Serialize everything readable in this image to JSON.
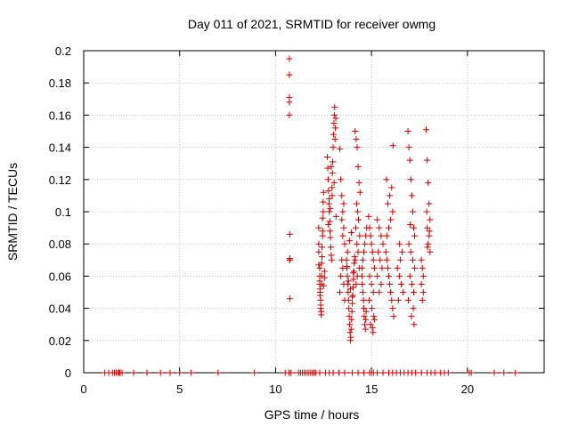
{
  "chart_data": {
    "type": "scatter",
    "title": "Day 011 of 2021, SRMTID for receiver owmg",
    "xlabel": "GPS time / hours",
    "ylabel": "SRMTID / TECUs",
    "xlim": [
      0,
      24
    ],
    "ylim": [
      0,
      0.2
    ],
    "x_ticks": [
      0,
      5,
      10,
      15,
      20
    ],
    "x_tick_labels": [
      "0",
      "5",
      "10",
      "15",
      "20"
    ],
    "y_ticks": [
      0,
      0.02,
      0.04,
      0.06,
      0.08,
      0.1,
      0.12,
      0.14,
      0.16,
      0.18,
      0.2
    ],
    "y_tick_labels": [
      "0",
      "0.02",
      "0.04",
      "0.06",
      "0.08",
      "0.1",
      "0.12",
      "0.14",
      "0.16",
      "0.18",
      "0.2"
    ],
    "grid": true,
    "marker": "+",
    "color": "#cc0000",
    "series": [
      {
        "name": "SRMTID",
        "x": [
          1.1,
          1.3,
          1.5,
          1.6,
          1.7,
          1.8,
          1.85,
          1.9,
          2.0,
          2.6,
          3.3,
          4.0,
          4.5,
          5.0,
          5.6,
          7.0,
          8.9,
          10.5,
          10.7,
          10.8,
          11.2,
          11.3,
          11.4,
          11.5,
          11.6,
          11.7,
          11.8,
          11.9,
          12.0,
          12.1,
          12.3,
          12.6,
          12.8,
          13.0,
          13.3,
          13.6,
          14.0,
          14.3,
          14.6,
          14.9,
          15.0,
          15.1,
          15.3,
          15.6,
          15.9,
          16.1,
          16.3,
          16.5,
          16.7,
          16.9,
          17.1,
          17.3,
          17.6,
          17.9,
          18.1,
          18.3,
          18.6,
          18.8,
          19.0,
          20.1,
          20.2,
          21.4,
          21.9,
          22.5,
          10.72,
          10.72,
          10.72,
          10.72,
          10.72,
          10.74,
          10.74,
          10.74,
          10.74,
          10.74,
          12.25,
          12.25,
          12.25,
          12.25,
          12.3,
          12.3,
          12.3,
          12.3,
          12.32,
          12.32,
          12.32,
          12.35,
          12.35,
          12.35,
          12.38,
          12.38,
          12.4,
          12.4,
          12.4,
          12.42,
          12.42,
          12.45,
          12.45,
          12.45,
          12.48,
          12.48,
          12.5,
          12.5,
          12.55,
          12.55,
          12.7,
          12.72,
          12.74,
          12.76,
          12.78,
          12.8,
          12.82,
          12.84,
          12.86,
          12.88,
          12.9,
          12.92,
          12.94,
          12.96,
          12.98,
          13.0,
          13.02,
          13.04,
          13.06,
          13.08,
          13.1,
          13.12,
          13.14,
          12.75,
          12.85,
          12.95,
          13.05,
          13.15,
          12.8,
          12.9,
          13.35,
          13.4,
          13.45,
          13.5,
          13.55,
          13.6,
          13.45,
          13.5,
          13.4,
          13.55,
          13.35,
          13.6,
          13.5,
          13.45,
          13.55,
          13.7,
          13.72,
          13.74,
          13.76,
          13.78,
          13.8,
          13.82,
          13.84,
          13.86,
          13.88,
          13.9,
          13.92,
          13.94,
          13.96,
          13.98,
          14.0,
          14.02,
          14.04,
          14.06,
          14.08,
          14.1,
          14.12,
          13.75,
          13.85,
          13.95,
          14.05,
          13.8,
          13.9,
          14.0,
          13.72,
          14.15,
          14.2,
          14.25,
          14.3,
          14.35,
          14.4,
          14.22,
          14.28,
          14.32,
          14.18,
          14.38,
          14.24,
          14.3,
          14.15,
          14.36,
          14.26,
          14.2,
          14.5,
          14.52,
          14.55,
          14.58,
          14.6,
          14.62,
          14.65,
          14.68,
          14.7,
          14.72,
          14.5,
          14.55,
          14.6,
          14.65,
          14.7,
          14.75,
          14.85,
          14.9,
          14.95,
          15.0,
          15.05,
          15.1,
          15.15,
          14.9,
          15.0,
          15.1,
          14.88,
          15.02,
          15.12,
          14.95,
          15.05,
          15.08,
          15.15,
          15.3,
          15.4,
          15.5,
          15.6,
          15.35,
          15.45,
          15.55,
          15.3,
          15.5,
          15.4,
          15.75,
          15.8,
          15.85,
          15.9,
          15.95,
          16.0,
          16.05,
          16.1,
          16.15,
          15.8,
          15.9,
          16.0,
          16.1,
          15.85,
          15.95,
          16.05,
          15.78,
          16.12,
          16.35,
          16.45,
          16.55,
          16.65,
          16.4,
          16.5,
          16.6,
          16.45,
          16.9,
          16.95,
          17.0,
          17.05,
          17.1,
          17.15,
          17.2,
          17.25,
          16.95,
          17.05,
          17.15,
          17.25,
          17.0,
          17.1,
          17.2,
          16.92,
          17.18,
          17.08,
          17.22,
          17.02,
          17.6,
          17.65,
          17.7,
          17.6,
          17.7,
          17.65,
          17.85,
          17.9,
          17.95,
          18.0,
          18.05,
          17.9,
          18.0,
          17.95,
          18.05,
          17.88,
          18.02,
          17.92
        ],
        "y": [
          0,
          0,
          0,
          0,
          0,
          0,
          0,
          0,
          0,
          0,
          0,
          0,
          0,
          0,
          0,
          0,
          0,
          0,
          0,
          0,
          0,
          0,
          0,
          0,
          0,
          0,
          0,
          0,
          0,
          0,
          0,
          0,
          0,
          0,
          0,
          0,
          0,
          0,
          0,
          0,
          0,
          0,
          0,
          0,
          0,
          0,
          0,
          0,
          0,
          0,
          0,
          0,
          0,
          0,
          0,
          0,
          0,
          0,
          0,
          0,
          0,
          0,
          0,
          0,
          0.195,
          0.185,
          0.171,
          0.168,
          0.16,
          0.086,
          0.071,
          0.07,
          0.046,
          0.07,
          0.09,
          0.08,
          0.075,
          0.067,
          0.065,
          0.06,
          0.057,
          0.055,
          0.052,
          0.05,
          0.048,
          0.045,
          0.042,
          0.04,
          0.038,
          0.036,
          0.055,
          0.06,
          0.068,
          0.072,
          0.078,
          0.085,
          0.088,
          0.096,
          0.1,
          0.106,
          0.112,
          0.054,
          0.059,
          0.063,
          0.134,
          0.127,
          0.12,
          0.113,
          0.105,
          0.1,
          0.094,
          0.088,
          0.084,
          0.078,
          0.073,
          0.07,
          0.115,
          0.124,
          0.131,
          0.14,
          0.148,
          0.155,
          0.16,
          0.165,
          0.145,
          0.152,
          0.158,
          0.092,
          0.102,
          0.11,
          0.118,
          0.097,
          0.108,
          0.128,
          0.139,
          0.12,
          0.11,
          0.1,
          0.09,
          0.08,
          0.07,
          0.065,
          0.06,
          0.055,
          0.05,
          0.045,
          0.085,
          0.095,
          0.105,
          0.07,
          0.065,
          0.06,
          0.055,
          0.05,
          0.045,
          0.04,
          0.035,
          0.03,
          0.025,
          0.02,
          0.022,
          0.027,
          0.033,
          0.038,
          0.043,
          0.048,
          0.053,
          0.058,
          0.063,
          0.068,
          0.072,
          0.075,
          0.082,
          0.087,
          0.062,
          0.057,
          0.052,
          0.047,
          0.066,
          0.15,
          0.145,
          0.14,
          0.128,
          0.118,
          0.112,
          0.105,
          0.1,
          0.095,
          0.09,
          0.085,
          0.08,
          0.075,
          0.07,
          0.065,
          0.06,
          0.055,
          0.06,
          0.055,
          0.05,
          0.045,
          0.04,
          0.035,
          0.03,
          0.027,
          0.033,
          0.038,
          0.065,
          0.07,
          0.075,
          0.08,
          0.085,
          0.09,
          0.097,
          0.09,
          0.085,
          0.08,
          0.075,
          0.07,
          0.065,
          0.06,
          0.055,
          0.05,
          0.045,
          0.04,
          0.035,
          0.03,
          0.028,
          0.025,
          0.033,
          0.095,
          0.09,
          0.085,
          0.08,
          0.075,
          0.07,
          0.065,
          0.06,
          0.055,
          0.05,
          0.075,
          0.07,
          0.065,
          0.06,
          0.055,
          0.05,
          0.045,
          0.04,
          0.035,
          0.085,
          0.09,
          0.095,
          0.1,
          0.105,
          0.11,
          0.115,
          0.12,
          0.141,
          0.065,
          0.06,
          0.055,
          0.05,
          0.045,
          0.07,
          0.075,
          0.08,
          0.15,
          0.14,
          0.132,
          0.12,
          0.11,
          0.1,
          0.09,
          0.085,
          0.08,
          0.075,
          0.07,
          0.065,
          0.06,
          0.055,
          0.05,
          0.045,
          0.04,
          0.035,
          0.03,
          0.092,
          0.07,
          0.065,
          0.06,
          0.055,
          0.05,
          0.045,
          0.151,
          0.132,
          0.118,
          0.105,
          0.095,
          0.09,
          0.085,
          0.08,
          0.075,
          0.1,
          0.088,
          0.078
        ]
      }
    ]
  }
}
